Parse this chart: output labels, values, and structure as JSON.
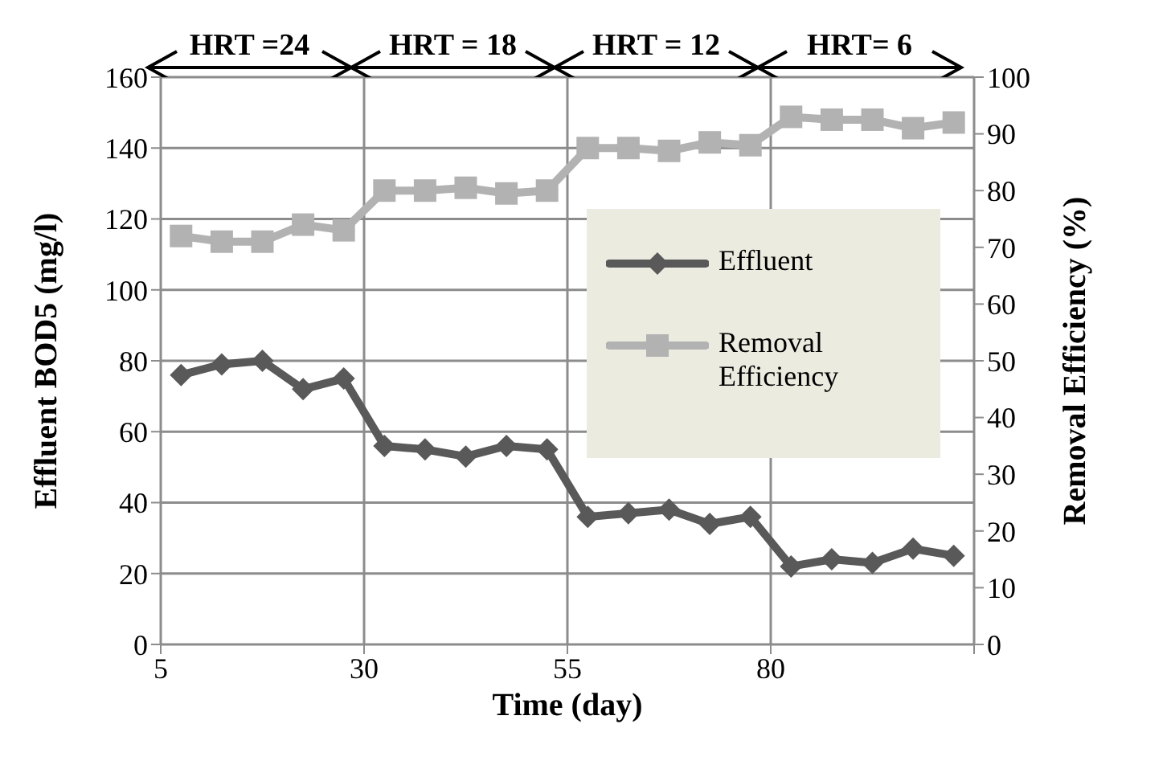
{
  "chart_data": {
    "type": "line",
    "xlabel": "Time (day)",
    "ylabel": "Effluent  BOD5 (mg/l)",
    "y2label": "Removal  Efficiency  (%)",
    "annotations": [
      "HRT =24",
      "HRT = 18",
      "HRT = 12",
      "HRT= 6"
    ],
    "x": [
      7.5,
      12.5,
      17.5,
      22.5,
      27.5,
      32.5,
      37.5,
      42.5,
      47.5,
      52.5,
      57.5,
      62.5,
      67.5,
      72.5,
      77.5,
      82.5,
      87.5,
      92.5,
      97.5,
      102.5
    ],
    "series": [
      {
        "name": "Effluent",
        "color": "#595959",
        "marker": "diamond",
        "values": [
          76,
          79,
          80,
          72,
          75,
          56,
          55,
          53,
          56,
          55,
          36,
          37,
          38,
          34,
          36,
          22,
          24,
          23,
          27,
          25
        ]
      },
      {
        "name": "Removal Efficiency",
        "color": "#b2b2b2",
        "marker": "square",
        "axis": "y2",
        "values": [
          72,
          71,
          71,
          74,
          73,
          80,
          80,
          80.5,
          79.5,
          80,
          87.5,
          87.5,
          87,
          88.5,
          88,
          93,
          92.5,
          92.5,
          91,
          92
        ]
      }
    ],
    "xlim": [
      5,
      105
    ],
    "xticks": [
      5,
      30,
      55,
      80,
      {
        "value": 105,
        "label": null
      }
    ],
    "ylim": [
      0,
      160
    ],
    "yticks": [
      0,
      20,
      40,
      60,
      80,
      100,
      120,
      140,
      160
    ],
    "y2lim": [
      0,
      100
    ],
    "y2ticks": [
      0,
      10,
      20,
      30,
      40,
      50,
      60,
      70,
      80,
      90,
      100
    ],
    "grid": true,
    "legend": "right",
    "line_style": "solid"
  }
}
